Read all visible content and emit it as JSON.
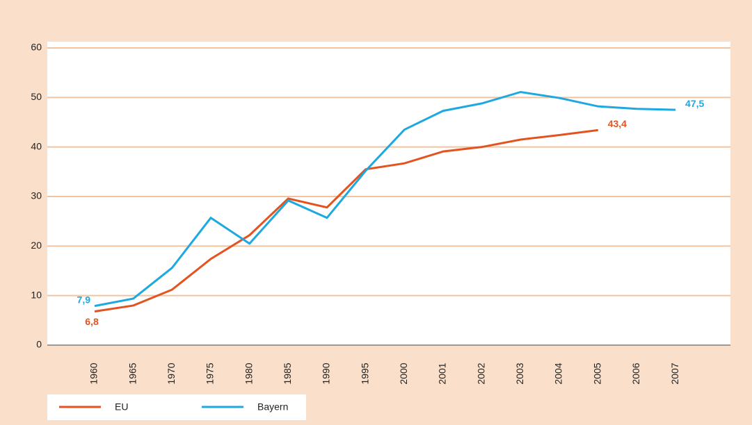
{
  "chart_data": {
    "type": "line",
    "categories": [
      "1960",
      "1965",
      "1970",
      "1975",
      "1980",
      "1985",
      "1990",
      "1995",
      "2000",
      "2001",
      "2002",
      "2003",
      "2004",
      "2005",
      "2006",
      "2007"
    ],
    "series": [
      {
        "name": "EU",
        "color": "#e2531f",
        "values": [
          6.8,
          8.0,
          11.2,
          17.4,
          22.2,
          29.6,
          27.8,
          35.5,
          36.7,
          39.1,
          40.0,
          41.5,
          42.4,
          43.4,
          null,
          null
        ],
        "value_labels": [
          "6,8",
          null,
          null,
          null,
          null,
          null,
          null,
          null,
          null,
          null,
          null,
          null,
          null,
          "43,4",
          null,
          null
        ]
      },
      {
        "name": "Bayern",
        "color": "#1ea8e0",
        "values": [
          7.9,
          9.4,
          15.6,
          25.7,
          20.5,
          29.2,
          25.7,
          35.2,
          43.5,
          47.3,
          48.8,
          51.1,
          49.9,
          48.2,
          47.7,
          47.5
        ],
        "value_labels": [
          "7,9",
          null,
          null,
          null,
          null,
          null,
          null,
          null,
          null,
          null,
          null,
          null,
          null,
          null,
          null,
          "47,5"
        ]
      }
    ],
    "ylim": [
      0,
      60
    ],
    "yticks": [
      0,
      10,
      20,
      30,
      40,
      50,
      60
    ],
    "grid": true,
    "legend": "bottom"
  }
}
